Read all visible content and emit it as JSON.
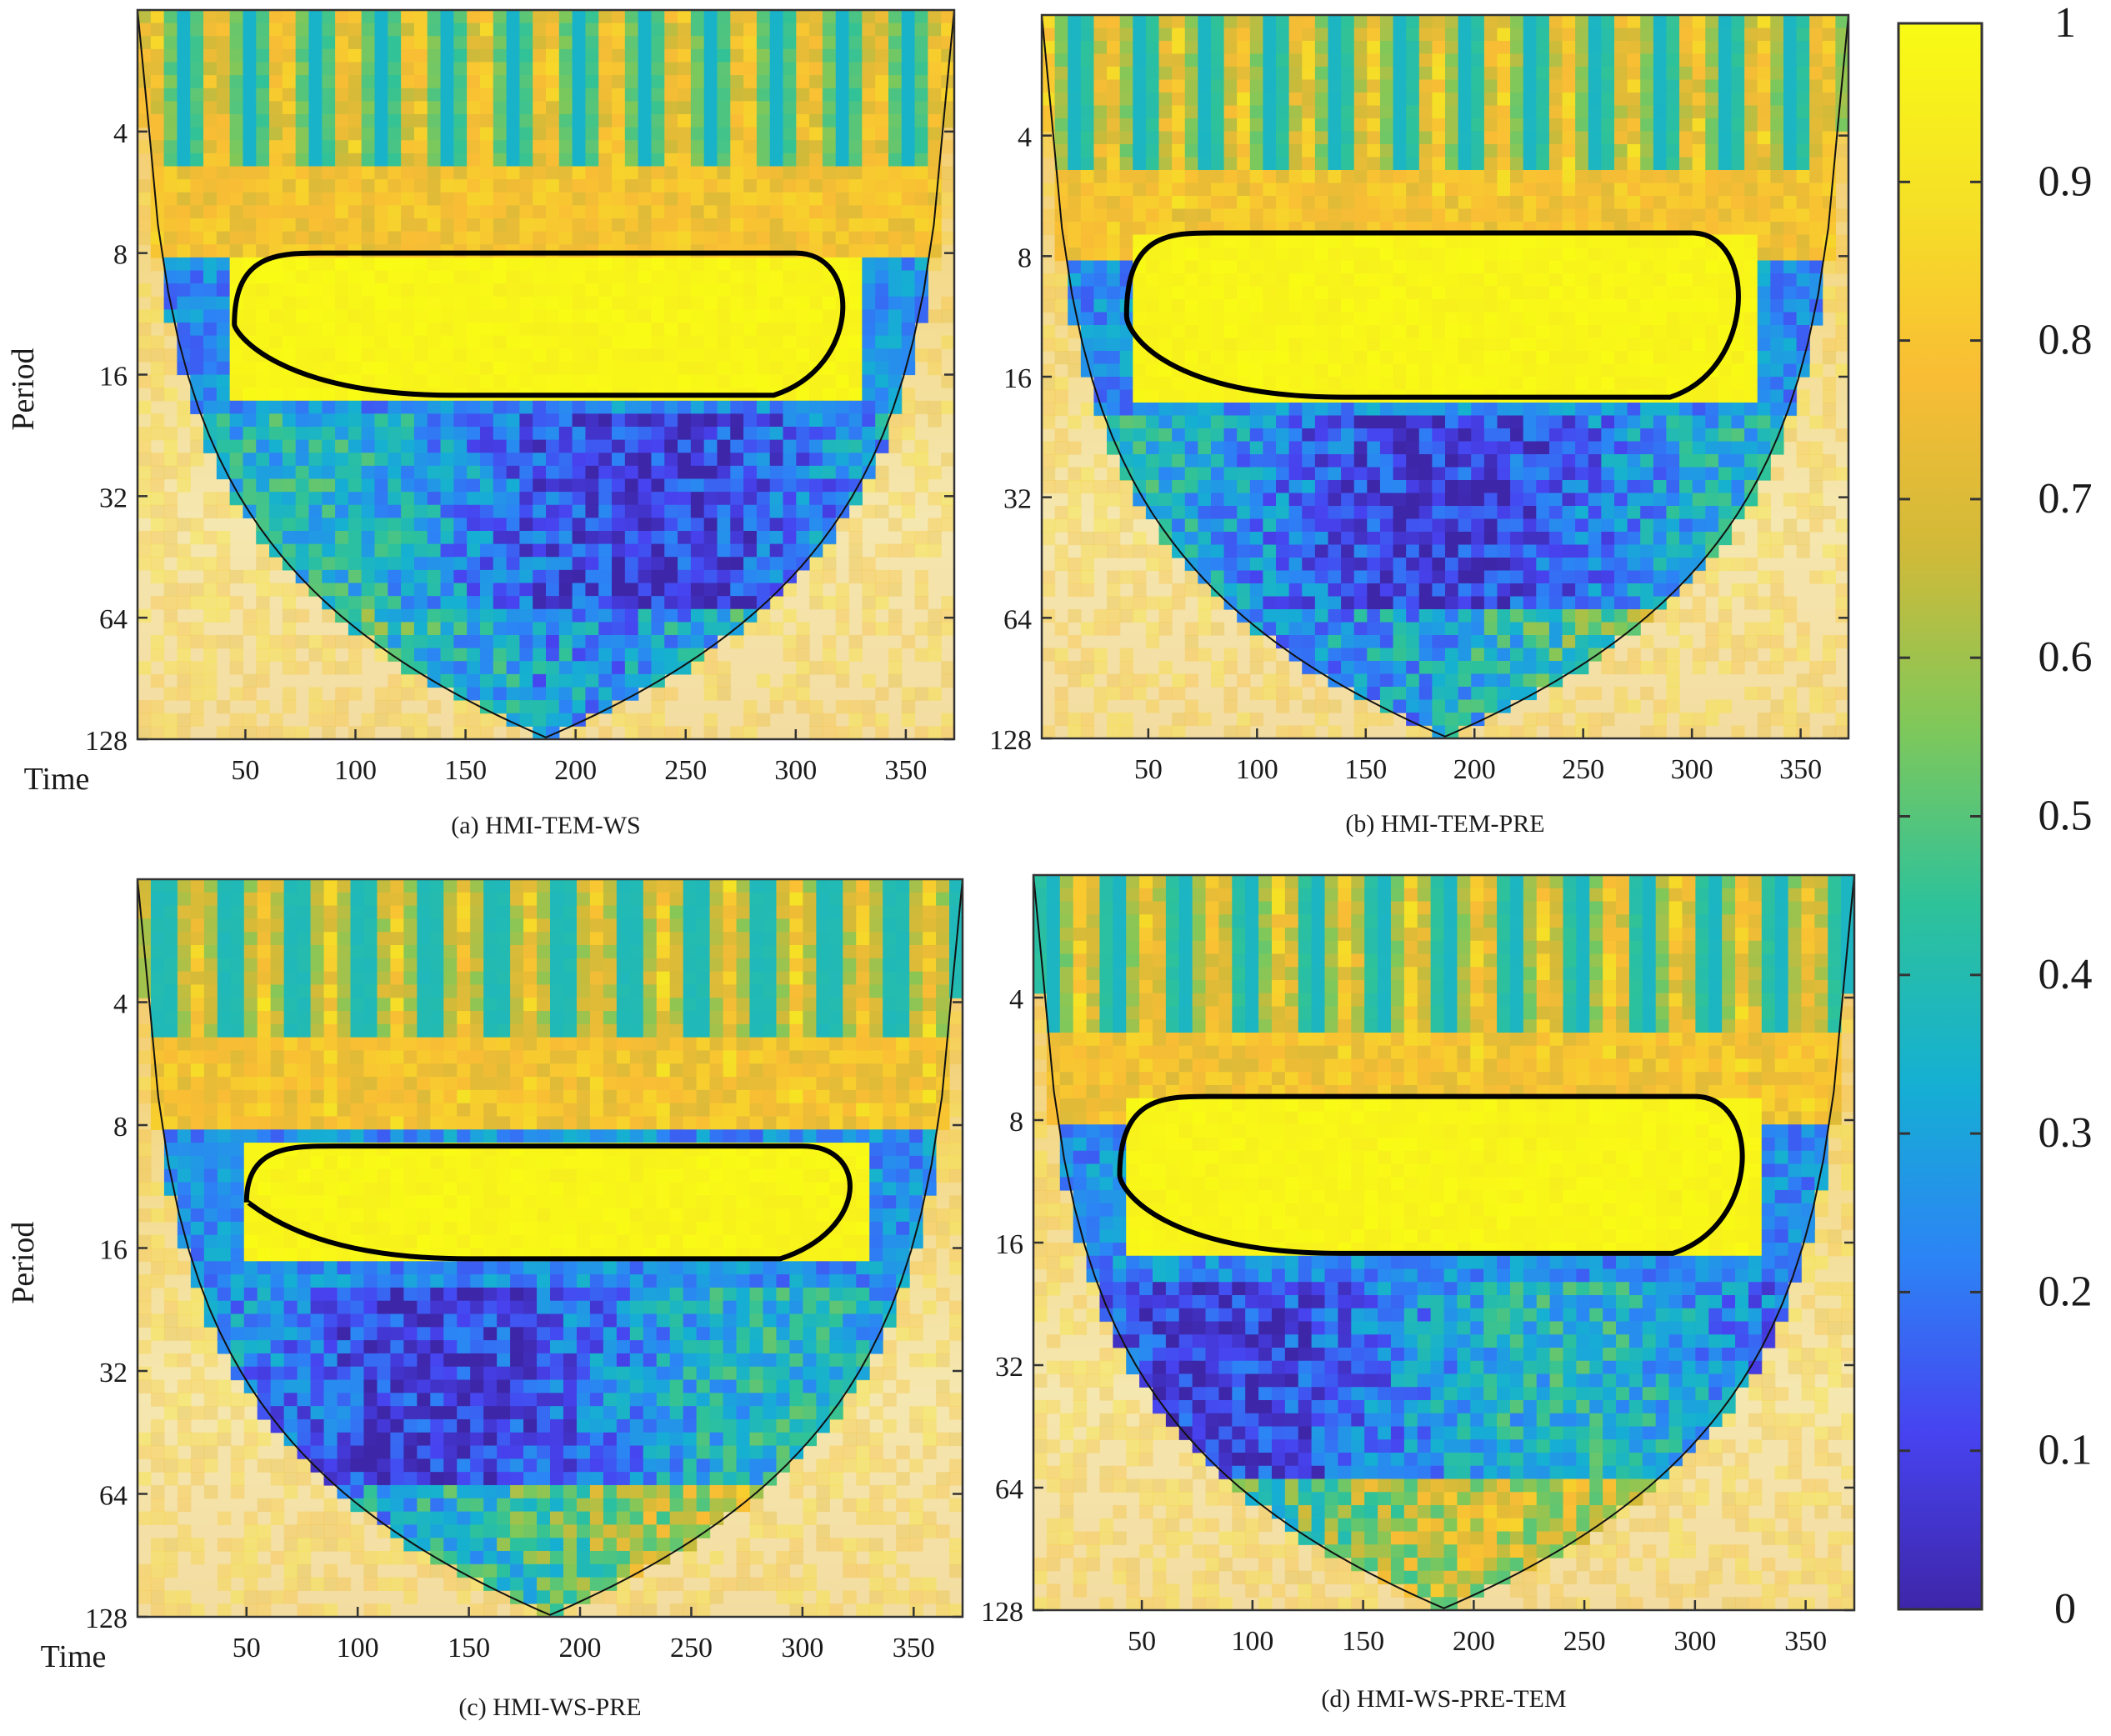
{
  "chart_data": [
    {
      "type": "heatmap",
      "caption": "(a) HMI-TEM-WS",
      "xlabel": "Time",
      "ylabel": "Period",
      "x_ticks": [
        50,
        100,
        150,
        200,
        250,
        300,
        350
      ],
      "y_ticks": [
        4,
        8,
        16,
        32,
        64,
        128
      ],
      "xlim": [
        1,
        372
      ],
      "ylim": [
        2,
        128
      ],
      "y_scale": "log2",
      "significant_band": {
        "period_range": [
          8,
          18
        ],
        "time_range": [
          45,
          330
        ]
      },
      "colors": {
        "deep_band": "#3a2fb0"
      }
    },
    {
      "type": "heatmap",
      "caption": "(b) HMI-TEM-PRE",
      "xlabel": "",
      "ylabel": "",
      "x_ticks": [
        50,
        100,
        150,
        200,
        250,
        300,
        350
      ],
      "y_ticks": [
        4,
        8,
        16,
        32,
        64,
        128
      ],
      "xlim": [
        1,
        372
      ],
      "ylim": [
        2,
        128
      ],
      "y_scale": "log2",
      "significant_band": {
        "period_range": [
          7,
          18
        ],
        "time_range": [
          40,
          330
        ]
      },
      "colors": {
        "deep_band": "#3a2fb0"
      }
    },
    {
      "type": "heatmap",
      "caption": "(c) HMI-WS-PRE",
      "xlabel": "Time",
      "ylabel": "Period",
      "x_ticks": [
        50,
        100,
        150,
        200,
        250,
        300,
        350
      ],
      "y_ticks": [
        4,
        8,
        16,
        32,
        64,
        128
      ],
      "xlim": [
        1,
        372
      ],
      "ylim": [
        2,
        128
      ],
      "y_scale": "log2",
      "significant_band": {
        "period_range": [
          9,
          17
        ],
        "time_range": [
          50,
          330
        ]
      },
      "colors": {
        "deep_band": "#3a2fb0"
      }
    },
    {
      "type": "heatmap",
      "caption": "(d) HMI-WS-PRE-TEM",
      "xlabel": "",
      "ylabel": "",
      "x_ticks": [
        50,
        100,
        150,
        200,
        250,
        300,
        350
      ],
      "y_ticks": [
        4,
        8,
        16,
        32,
        64,
        128
      ],
      "xlim": [
        1,
        372
      ],
      "ylim": [
        2,
        128
      ],
      "y_scale": "log2",
      "significant_band": {
        "period_range": [
          7,
          17
        ],
        "time_range": [
          40,
          330
        ]
      },
      "colors": {
        "deep_band": "#3a2fb0"
      }
    }
  ],
  "colorbar": {
    "ticks": [
      {
        "value": 0,
        "label": "0"
      },
      {
        "value": 0.1,
        "label": "0.1"
      },
      {
        "value": 0.2,
        "label": "0.2"
      },
      {
        "value": 0.3,
        "label": "0.3"
      },
      {
        "value": 0.4,
        "label": "0.4"
      },
      {
        "value": 0.5,
        "label": "0.5"
      },
      {
        "value": 0.6,
        "label": "0.6"
      },
      {
        "value": 0.7,
        "label": "0.7"
      },
      {
        "value": 0.8,
        "label": "0.8"
      },
      {
        "value": 0.9,
        "label": "0.9"
      },
      {
        "value": 1,
        "label": "1"
      }
    ],
    "range": [
      0,
      1
    ],
    "colormap": [
      "#3e26a8",
      "#4743f0",
      "#2c84f5",
      "#15b0d2",
      "#2ec29a",
      "#7fc85a",
      "#d0ba39",
      "#f9bd35",
      "#f5e126",
      "#f9fb15"
    ]
  }
}
